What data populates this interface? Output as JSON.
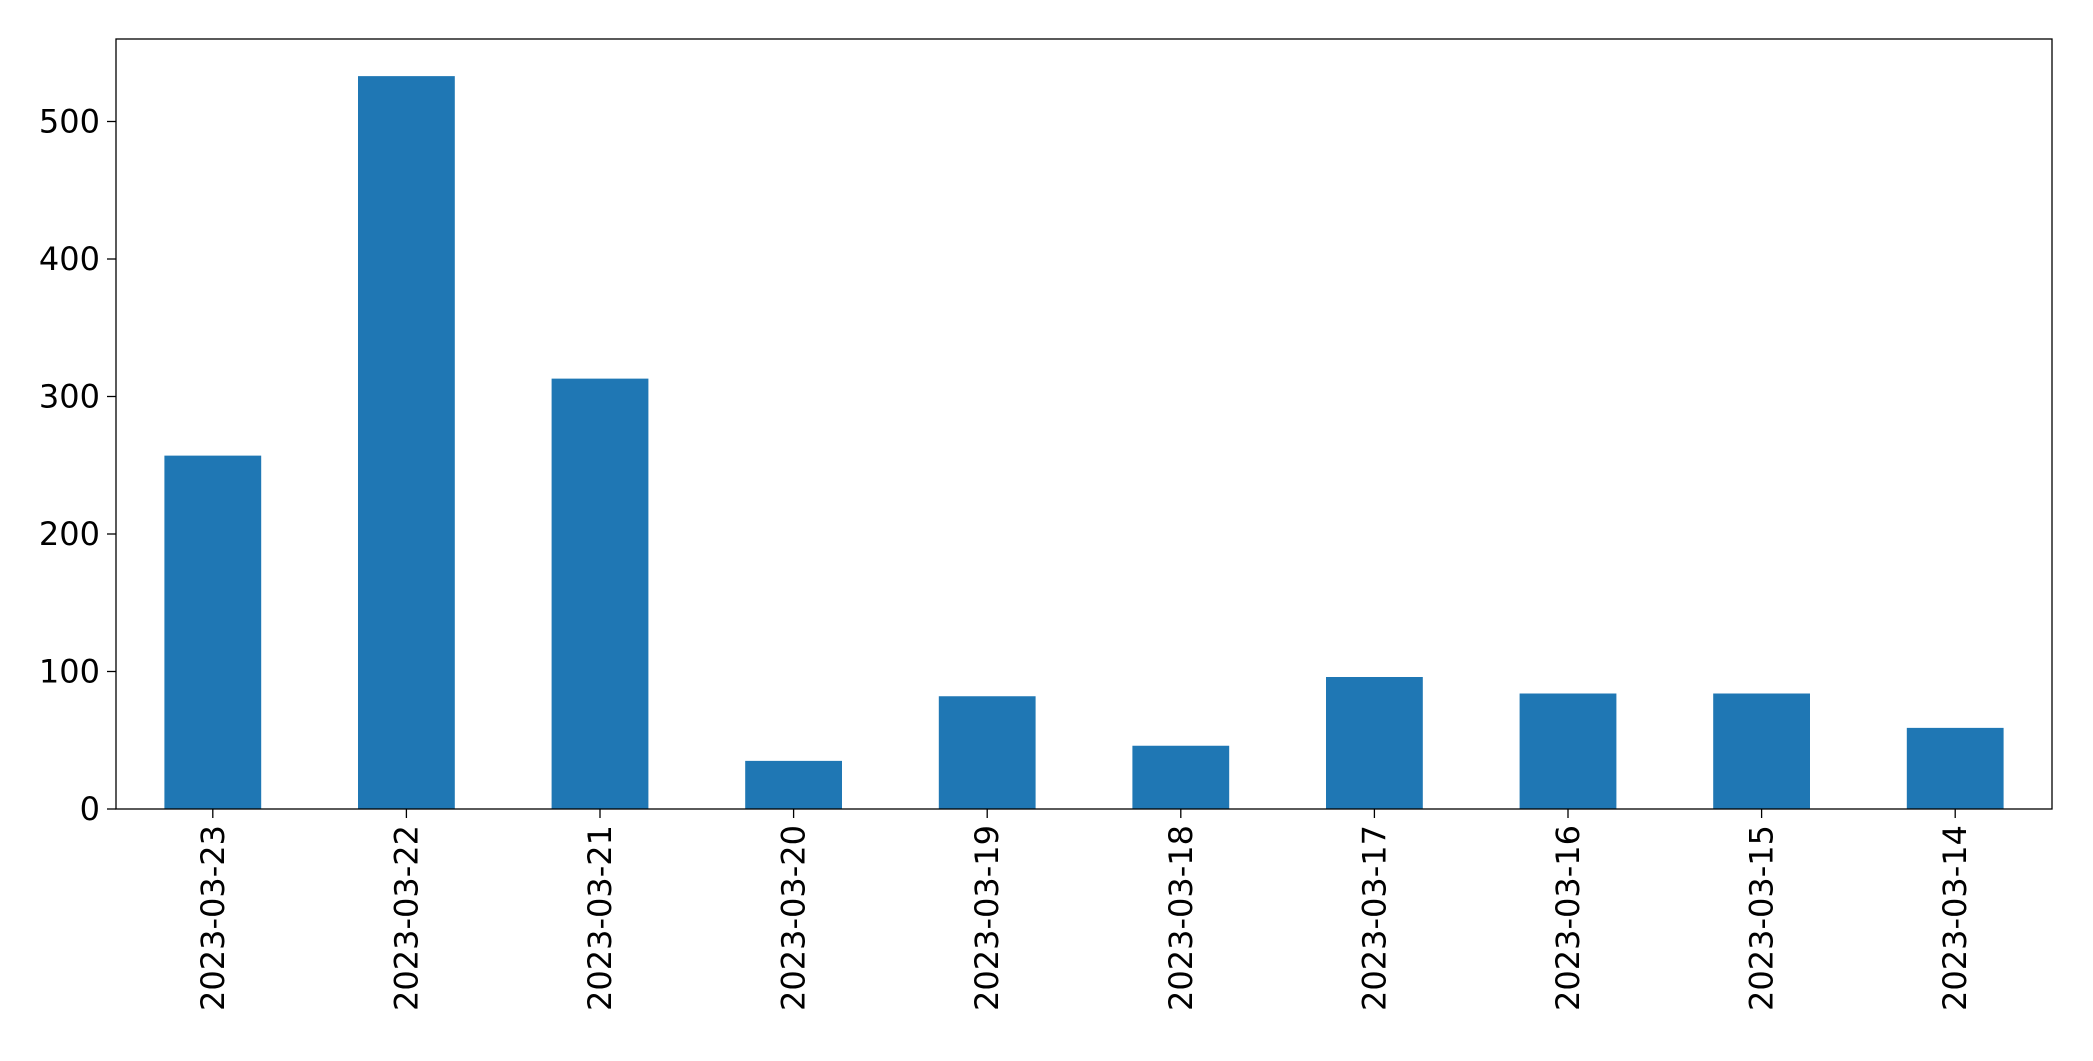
{
  "chart_data": {
    "type": "bar",
    "categories": [
      "2023-03-23",
      "2023-03-22",
      "2023-03-21",
      "2023-03-20",
      "2023-03-19",
      "2023-03-18",
      "2023-03-17",
      "2023-03-16",
      "2023-03-15",
      "2023-03-14"
    ],
    "values": [
      257,
      533,
      313,
      35,
      82,
      46,
      96,
      84,
      84,
      59
    ],
    "color": "#1f77b4",
    "ylim": [
      0,
      560
    ],
    "yticks": [
      0,
      100,
      200,
      300,
      400,
      500
    ],
    "grid": false
  }
}
